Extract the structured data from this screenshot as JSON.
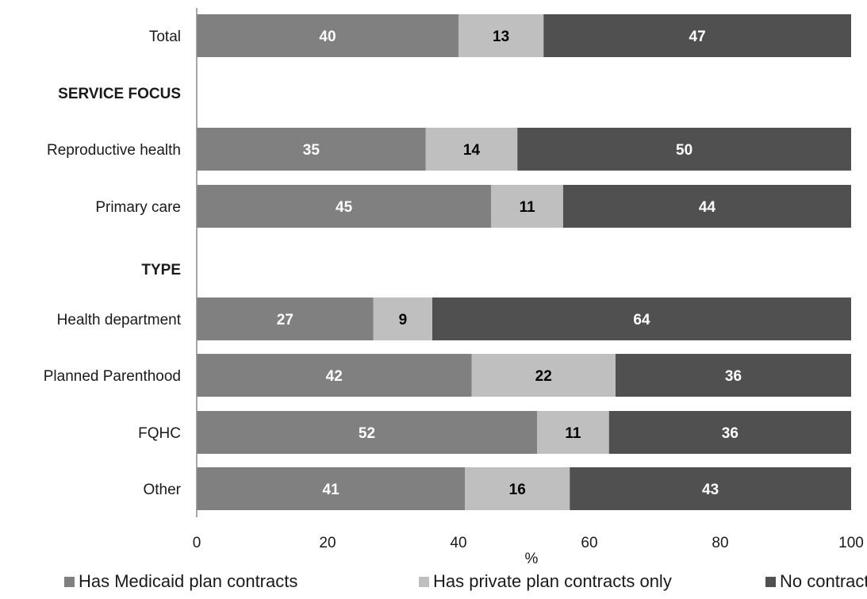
{
  "chart_data": {
    "type": "bar",
    "orientation": "horizontal",
    "stacked": true,
    "xlabel": "%",
    "xlim": [
      0,
      100
    ],
    "xticks": [
      0,
      20,
      40,
      60,
      80,
      100
    ],
    "grid": false,
    "legend_position": "bottom",
    "rows": [
      {
        "label": "Total",
        "kind": "category",
        "values": [
          40,
          13,
          47
        ]
      },
      {
        "label": "SERVICE FOCUS",
        "kind": "header"
      },
      {
        "label": "Reproductive health",
        "kind": "category",
        "values": [
          35,
          14,
          50
        ]
      },
      {
        "label": "Primary care",
        "kind": "category",
        "values": [
          45,
          11,
          44
        ]
      },
      {
        "label": "TYPE",
        "kind": "header"
      },
      {
        "label": "Health department",
        "kind": "category",
        "values": [
          27,
          9,
          64
        ]
      },
      {
        "label": "Planned Parenthood",
        "kind": "category",
        "values": [
          42,
          22,
          36
        ]
      },
      {
        "label": "FQHC",
        "kind": "category",
        "values": [
          52,
          11,
          36
        ]
      },
      {
        "label": "Other",
        "kind": "category",
        "values": [
          41,
          16,
          43
        ]
      }
    ],
    "series": [
      {
        "name": "Has Medicaid plan contracts",
        "color": "#808080",
        "label_color": "#ffffff"
      },
      {
        "name": "Has private plan contracts only",
        "color": "#bfbfbf",
        "label_color": "#000000"
      },
      {
        "name": "No contracts",
        "color": "#505050",
        "label_color": "#ffffff"
      }
    ]
  }
}
